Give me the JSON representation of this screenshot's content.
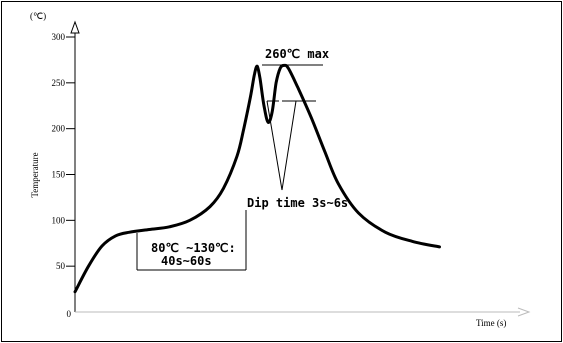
{
  "chart_data": {
    "type": "line",
    "title": "",
    "xlabel": "Time (s)",
    "ylabel": "Temperature",
    "yunit": "(℃)",
    "ylim": [
      0,
      300
    ],
    "yticks": [
      0,
      50,
      100,
      150,
      200,
      250,
      300
    ],
    "ytick_labels": [
      "0",
      "50",
      "100",
      "150",
      "200",
      "250",
      "300"
    ],
    "grid": false,
    "series": [
      {
        "name": "",
        "points": [
          [
            0,
            22
          ],
          [
            10,
            50
          ],
          [
            20,
            72
          ],
          [
            30,
            83
          ],
          [
            40,
            87
          ],
          [
            55,
            90
          ],
          [
            70,
            93
          ],
          [
            85,
            100
          ],
          [
            100,
            115
          ],
          [
            110,
            135
          ],
          [
            120,
            170
          ],
          [
            125,
            200
          ],
          [
            130,
            235
          ],
          [
            133,
            260
          ],
          [
            135,
            268
          ],
          [
            137,
            255
          ],
          [
            140,
            225
          ],
          [
            143,
            207
          ],
          [
            146,
            218
          ],
          [
            149,
            250
          ],
          [
            152,
            266
          ],
          [
            155,
            269
          ],
          [
            158,
            266
          ],
          [
            165,
            245
          ],
          [
            175,
            212
          ],
          [
            185,
            175
          ],
          [
            195,
            140
          ],
          [
            210,
            108
          ],
          [
            230,
            87
          ],
          [
            250,
            77
          ],
          [
            270,
            71
          ]
        ]
      }
    ],
    "annotations": [
      {
        "text": "260℃ max"
      },
      {
        "text": "Dip time 3s~6s"
      },
      {
        "text": "80℃ ~130℃:"
      },
      {
        "text": "40s~60s"
      }
    ]
  }
}
